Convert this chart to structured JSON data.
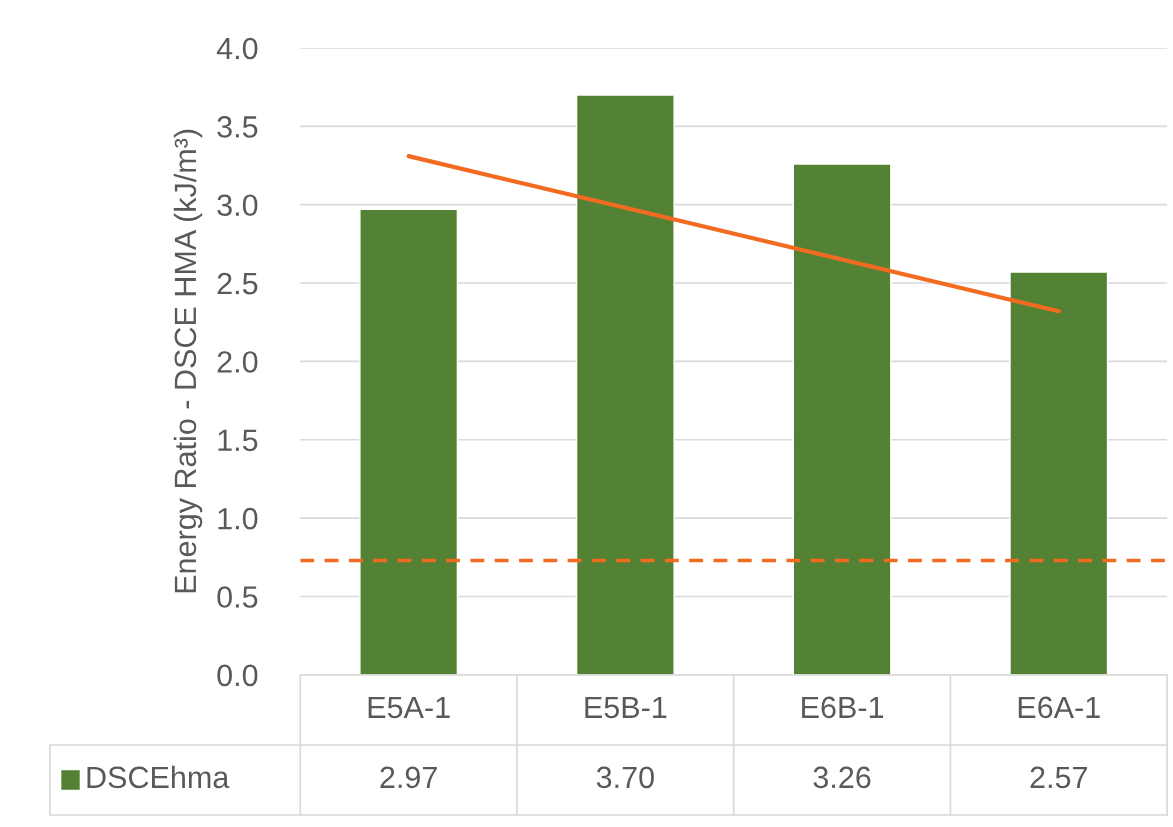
{
  "chart_data": {
    "type": "bar",
    "ylabel": "Energy Ratio - DSCE HMA (kJ/m³)",
    "categories": [
      "E5A-1",
      "E5B-1",
      "E6B-1",
      "E6A-1"
    ],
    "series": [
      {
        "name": "DSCEhma",
        "color": "#548235",
        "values": [
          2.97,
          3.7,
          3.26,
          2.57
        ],
        "value_labels": [
          "2.97",
          "3.70",
          "3.26",
          "2.57"
        ]
      },
      {
        "type": "line",
        "color": "#f26b21",
        "values": [
          3.31,
          2.98,
          2.65,
          2.32
        ]
      }
    ],
    "ylim": [
      0,
      4.0
    ],
    "yticks": [
      "0.0",
      "0.5",
      "1.0",
      "1.5",
      "2.0",
      "2.5",
      "3.0",
      "3.5",
      "4.0"
    ],
    "ref_lines": [
      {
        "axis": "y",
        "value": 0.73,
        "color": "#f26b21",
        "line_style": "dashed"
      }
    ],
    "grid": "y"
  }
}
